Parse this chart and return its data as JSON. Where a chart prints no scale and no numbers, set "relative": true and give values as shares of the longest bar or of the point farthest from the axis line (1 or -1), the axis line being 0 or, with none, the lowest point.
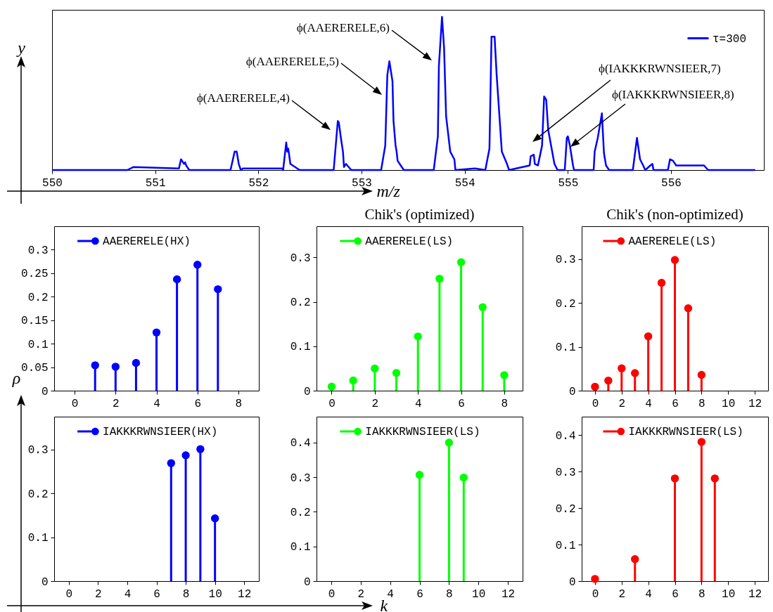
{
  "chart_data": [
    {
      "type": "line",
      "relative": true,
      "xlabel": "m/z",
      "ylabel": "y",
      "legend": "top right",
      "xlim": [
        550,
        556.9
      ],
      "xticks": [
        550,
        551,
        552,
        553,
        554,
        555,
        556
      ],
      "x": [
        550.01,
        550.73,
        550.79,
        551.23,
        551.25,
        551.28,
        551.29,
        551.3,
        551.33,
        551.73,
        551.77,
        551.79,
        551.81,
        551.83,
        551.85,
        552.23,
        552.24,
        552.27,
        552.28,
        552.29,
        552.31,
        552.4,
        552.73,
        552.77,
        552.78,
        552.8,
        552.82,
        552.83,
        552.85,
        552.9,
        553.19,
        553.23,
        553.25,
        553.27,
        553.3,
        553.31,
        553.33,
        553.34,
        553.35,
        553.38,
        553.41,
        553.7,
        553.74,
        553.75,
        553.78,
        553.8,
        553.82,
        553.86,
        553.9,
        553.91,
        554.1,
        554.2,
        554.24,
        554.26,
        554.29,
        554.31,
        554.36,
        554.41,
        554.43,
        554.63,
        554.64,
        554.67,
        554.68,
        554.71,
        554.75,
        554.77,
        554.79,
        554.81,
        554.87,
        554.9,
        554.97,
        554.99,
        555,
        555.02,
        555.05,
        555.06,
        555.25,
        555.26,
        555.29,
        555.33,
        555.35,
        555.37,
        555.4,
        555.63,
        555.67,
        555.7,
        555.73,
        555.75,
        555.8,
        555.82,
        555.83,
        555.97,
        555.99,
        556.02,
        556.05,
        556.31,
        556.32,
        556.36,
        556.81
      ],
      "series": [
        {
          "name": "τ=300",
          "color": "#0000ff",
          "values": [
            0,
            0,
            0.02,
            0.01,
            0.07,
            0.04,
            0.05,
            0.03,
            0,
            0,
            0.12,
            0.12,
            0.04,
            0,
            0.01,
            0.01,
            0,
            0.18,
            0.12,
            0.14,
            0.04,
            0,
            0,
            0.32,
            0.31,
            0.21,
            0.12,
            0.02,
            0.04,
            0,
            0,
            0.16,
            0.62,
            0.71,
            0.58,
            0.32,
            0.16,
            0.12,
            0.06,
            0.03,
            0,
            0,
            0.22,
            0.68,
            1,
            0.8,
            0.35,
            0.12,
            0.07,
            0,
            0.01,
            0,
            0.14,
            0.87,
            0.87,
            0.62,
            0.12,
            0.04,
            0,
            0.03,
            0.09,
            0.1,
            0.04,
            0.03,
            0.16,
            0.48,
            0.46,
            0.26,
            0.04,
            0,
            0,
            0.21,
            0.22,
            0.16,
            0.03,
            0,
            0,
            0.12,
            0.21,
            0.37,
            0.11,
            0.03,
            0,
            0,
            0.21,
            0.07,
            0.03,
            0,
            0.03,
            0.04,
            0,
            0,
            0.07,
            0.06,
            0.03,
            0.03,
            0.03,
            0,
            0
          ]
        }
      ],
      "annotations": [
        "ϕ(AAERERELE,4)",
        "ϕ(AAERERELE,5)",
        "ϕ(AAERERELE,6)",
        "ϕ(IAKKKRWNSIEER,7)",
        "ϕ(IAKKKRWNSIEER,8)"
      ]
    },
    {
      "type": "lollipop",
      "ylabel": "ρ",
      "legend": "top",
      "marker": "circle",
      "x": [
        1,
        2,
        3,
        4,
        5,
        6,
        7
      ],
      "xlim": [
        -1,
        9
      ],
      "xticks": [
        0,
        2,
        4,
        6,
        8
      ],
      "ylim": [
        0,
        0.35
      ],
      "yticks": [
        0,
        0.05,
        0.1,
        0.15,
        0.2,
        0.25,
        0.3
      ],
      "series": [
        {
          "name": "AAERERELE(HX)",
          "color": "#0000ff",
          "values": [
            0.054,
            0.051,
            0.059,
            0.124,
            0.237,
            0.268,
            0.216
          ]
        }
      ]
    },
    {
      "type": "lollipop",
      "title": "Chik's (optimized)",
      "legend": "top",
      "marker": "circle",
      "x": [
        0,
        1,
        2,
        3,
        4,
        5,
        6,
        7,
        8
      ],
      "xlim": [
        -0.7,
        8.85
      ],
      "xticks": [
        0,
        2,
        4,
        6,
        8
      ],
      "ylim": [
        0,
        0.37
      ],
      "yticks": [
        0,
        0.1,
        0.2,
        0.3
      ],
      "series": [
        {
          "name": "AAERERELE(LS)",
          "color": "#00ff00",
          "values": [
            0.009,
            0.023,
            0.05,
            0.04,
            0.122,
            0.252,
            0.289,
            0.188,
            0.035
          ]
        }
      ]
    },
    {
      "type": "lollipop",
      "title": "Chik's (non-optimized)",
      "legend": "top",
      "marker": "circle",
      "x": [
        0,
        1,
        2,
        3,
        4,
        5,
        6,
        7,
        8
      ],
      "xlim": [
        -1,
        13
      ],
      "xticks": [
        0,
        2,
        4,
        6,
        8,
        10,
        12
      ],
      "ylim": [
        0,
        0.375
      ],
      "yticks": [
        0,
        0.1,
        0.2,
        0.3
      ],
      "series": [
        {
          "name": "AAERERELE(LS)",
          "color": "#ff0000",
          "values": [
            0.009,
            0.023,
            0.051,
            0.04,
            0.124,
            0.246,
            0.298,
            0.188,
            0.036
          ]
        }
      ]
    },
    {
      "type": "lollipop",
      "legend": "top",
      "marker": "circle",
      "x": [
        7,
        8,
        9,
        10
      ],
      "xlim": [
        -1,
        13
      ],
      "xticks": [
        0,
        2,
        4,
        6,
        8,
        10,
        12
      ],
      "ylim": [
        0,
        0.375
      ],
      "yticks": [
        0,
        0.1,
        0.2,
        0.3
      ],
      "series": [
        {
          "name": "IAKKKRWNSIEER(HX)",
          "color": "#0000ff",
          "values": [
            0.269,
            0.287,
            0.301,
            0.143
          ]
        }
      ]
    },
    {
      "type": "lollipop",
      "xlabel": "k",
      "legend": "top",
      "marker": "circle",
      "x": [
        6,
        8,
        9
      ],
      "xlim": [
        -1,
        13
      ],
      "xticks": [
        0,
        2,
        4,
        6,
        8,
        10,
        12
      ],
      "ylim": [
        0,
        0.475
      ],
      "yticks": [
        0,
        0.1,
        0.2,
        0.3,
        0.4
      ],
      "series": [
        {
          "name": "IAKKKRWNSIEER(LS)",
          "color": "#00ff00",
          "values": [
            0.307,
            0.4,
            0.299
          ]
        }
      ]
    },
    {
      "type": "lollipop",
      "legend": "top",
      "marker": "circle",
      "x": [
        0,
        3,
        6,
        8,
        9
      ],
      "xlim": [
        -1,
        13
      ],
      "xticks": [
        0,
        2,
        4,
        6,
        8,
        10,
        12
      ],
      "ylim": [
        0,
        0.45
      ],
      "yticks": [
        0,
        0.1,
        0.2,
        0.3,
        0.4
      ],
      "series": [
        {
          "name": "IAKKKRWNSIEER(LS)",
          "color": "#ff0000",
          "values": [
            0.006,
            0.06,
            0.281,
            0.381,
            0.281
          ]
        }
      ]
    }
  ]
}
